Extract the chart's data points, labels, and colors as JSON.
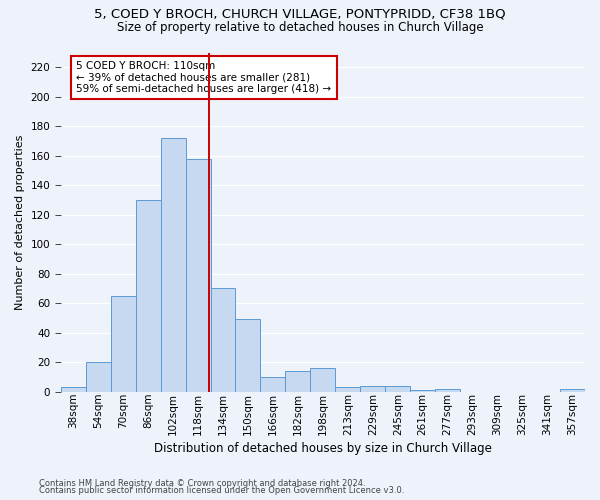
{
  "title1": "5, COED Y BROCH, CHURCH VILLAGE, PONTYPRIDD, CF38 1BQ",
  "title2": "Size of property relative to detached houses in Church Village",
  "xlabel": "Distribution of detached houses by size in Church Village",
  "ylabel": "Number of detached properties",
  "categories": [
    "38sqm",
    "54sqm",
    "70sqm",
    "86sqm",
    "102sqm",
    "118sqm",
    "134sqm",
    "150sqm",
    "166sqm",
    "182sqm",
    "198sqm",
    "213sqm",
    "229sqm",
    "245sqm",
    "261sqm",
    "277sqm",
    "293sqm",
    "309sqm",
    "325sqm",
    "341sqm",
    "357sqm"
  ],
  "values": [
    3,
    20,
    65,
    130,
    172,
    158,
    70,
    49,
    10,
    14,
    16,
    3,
    4,
    4,
    1,
    2,
    0,
    0,
    0,
    0,
    2
  ],
  "bar_color": "#c6d9f1",
  "bar_edge_color": "#5a9ad5",
  "bar_linewidth": 0.7,
  "vline_color": "#cc0000",
  "vline_x_index": 5.43,
  "annotation_line1": "5 COED Y BROCH: 110sqm",
  "annotation_line2": "← 39% of detached houses are smaller (281)",
  "annotation_line3": "59% of semi-detached houses are larger (418) →",
  "annotation_box_color": "#ffffff",
  "annotation_box_edge": "#cc0000",
  "ylim": [
    0,
    230
  ],
  "yticks": [
    0,
    20,
    40,
    60,
    80,
    100,
    120,
    140,
    160,
    180,
    200,
    220
  ],
  "footer1": "Contains HM Land Registry data © Crown copyright and database right 2024.",
  "footer2": "Contains public sector information licensed under the Open Government Licence v3.0.",
  "bg_color": "#edf2fb",
  "grid_color": "#ffffff",
  "title1_fontsize": 9.5,
  "title2_fontsize": 8.5,
  "xlabel_fontsize": 8.5,
  "ylabel_fontsize": 8,
  "tick_fontsize": 7.5,
  "annot_fontsize": 7.5,
  "footer_fontsize": 6.0
}
